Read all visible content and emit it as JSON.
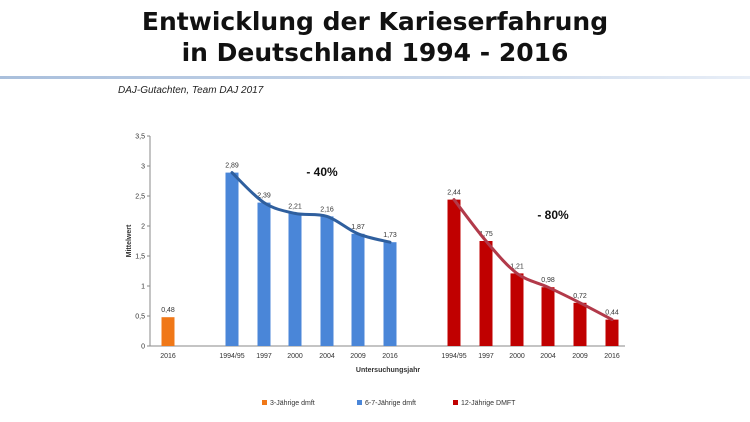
{
  "title_line1": "Entwicklung der Karieserfahrung",
  "title_line2": "in Deutschland 1994 - 2016",
  "source": "DAJ-Gutachten, Team DAJ 2017",
  "chart_data": {
    "type": "bar",
    "xlabel": "Untersuchungsjahr",
    "ylabel": "Mittelwert",
    "ylim": [
      0,
      3.5
    ],
    "yticks": [
      "0",
      "0,5",
      "1",
      "1,5",
      "2",
      "2,5",
      "3",
      "3,5"
    ],
    "grid": false,
    "legend_position": "bottom",
    "series": [
      {
        "name": "3-Jährige dmft",
        "color": "#f07818",
        "categories": [
          "2016"
        ],
        "values": [
          0.48
        ],
        "labels": [
          "0,48"
        ]
      },
      {
        "name": "6-7-Jährige dmft",
        "color": "#4a86d8",
        "categories": [
          "1994/95",
          "1997",
          "2000",
          "2004",
          "2009",
          "2016"
        ],
        "values": [
          2.89,
          2.39,
          2.21,
          2.16,
          1.87,
          1.73
        ],
        "labels": [
          "2,89",
          "2,39",
          "2,21",
          "2,16",
          "1,87",
          "1,73"
        ]
      },
      {
        "name": "12-Jährige DMFT",
        "color": "#c00000",
        "categories": [
          "1994/95",
          "1997",
          "2000",
          "2004",
          "2009",
          "2016"
        ],
        "values": [
          2.44,
          1.75,
          1.21,
          0.98,
          0.72,
          0.44
        ],
        "labels": [
          "2,44",
          "1,75",
          "1,21",
          "0,98",
          "0,72",
          "0,44"
        ]
      }
    ],
    "trend_colors": [
      "#2f5f9e",
      "#b23a4a"
    ],
    "annotations": [
      "- 40%",
      "- 80%"
    ]
  }
}
